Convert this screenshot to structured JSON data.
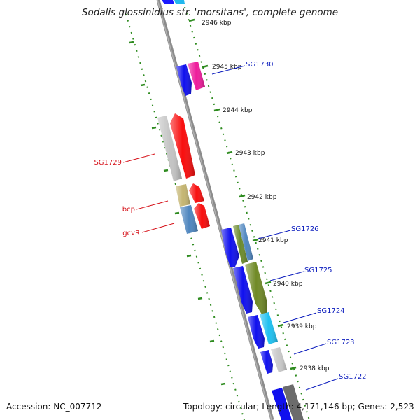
{
  "title": "Sodalis glossinidius str. 'morsitans', complete genome",
  "footer": {
    "accession": "Accession: NC_007712",
    "summary": "Topology: circular; Length: 4,171,146 bp; Genes: 2,523"
  },
  "colors": {
    "forward_label": "#0a1bbd",
    "reverse_label": "#d6121a",
    "backbone": "#8c8c8c",
    "tick": "#2e8b1f",
    "tick_label": "#111111"
  },
  "ticks": [
    "2946 kbp",
    "2945 kbp",
    "2944 kbp",
    "2943 kbp",
    "2942 kbp",
    "2941 kbp",
    "2940 kbp",
    "2939 kbp",
    "2938 kbp"
  ],
  "gene_labels": {
    "forward": [
      "SG1730",
      "SG1726",
      "SG1725",
      "SG1724",
      "SG1723",
      "SG1722"
    ],
    "reverse": [
      "SG1729",
      "bcp",
      "gcvR"
    ]
  }
}
